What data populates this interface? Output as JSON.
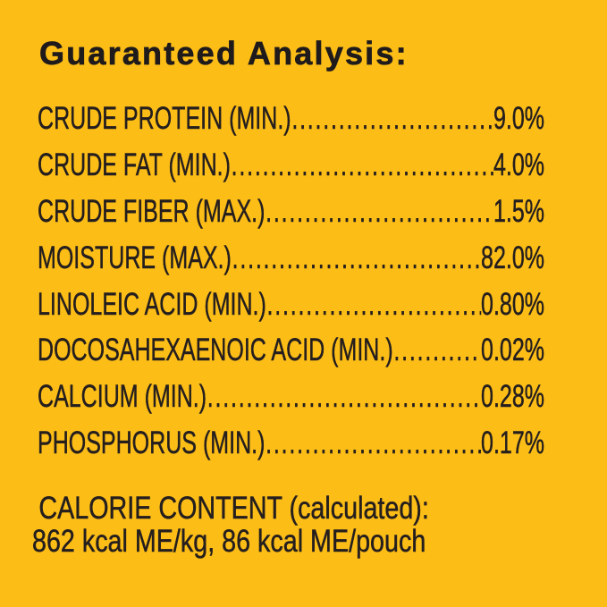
{
  "colors": {
    "background": "#FCBD17",
    "text": "#241E1E"
  },
  "title": "Guaranteed Analysis:",
  "analysis_rows": [
    {
      "label": "CRUDE PROTEIN (MIN.)",
      "value": "9.0%"
    },
    {
      "label": "CRUDE FAT (MIN.)",
      "value": "4.0%"
    },
    {
      "label": "CRUDE FIBER (MAX.)",
      "value": "1.5%"
    },
    {
      "label": "MOISTURE (MAX.)",
      "value": "82.0%"
    },
    {
      "label": "LINOLEIC ACID (MIN.)",
      "value": "0.80%"
    },
    {
      "label": "DOCOSAHEXAENOIC ACID (MIN.)",
      "value": "0.02%"
    },
    {
      "label": "CALCIUM (MIN.)",
      "value": "0.28%"
    },
    {
      "label": "PHOSPHORUS (MIN.)",
      "value": "0.17%"
    }
  ],
  "calorie_content": {
    "heading": "CALORIE CONTENT (calculated):",
    "values": "862 kcal ME/kg, 86 kcal ME/pouch"
  }
}
